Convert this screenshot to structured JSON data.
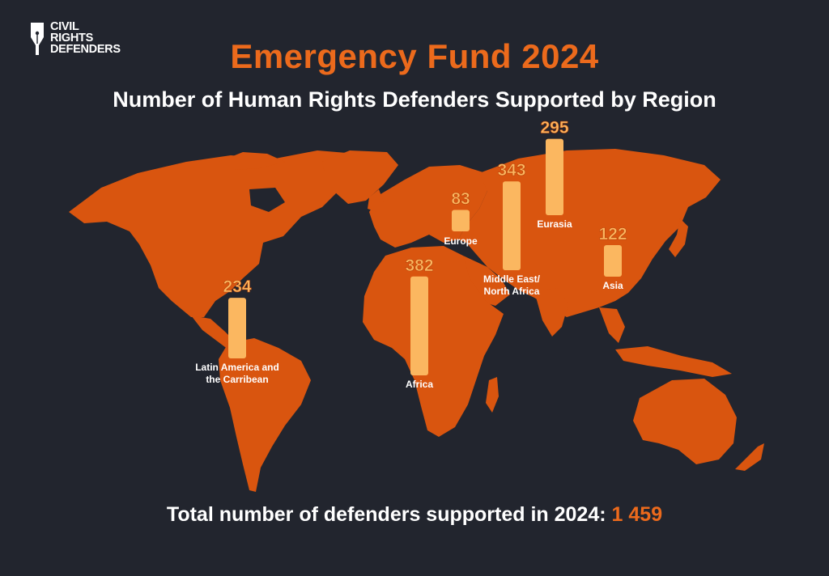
{
  "logo": {
    "lines": [
      "CIVIL",
      "RIGHTS",
      "DEFENDERS"
    ]
  },
  "title": "Emergency Fund 2024",
  "subtitle": "Number of Human Rights Defenders Supported by Region",
  "colors": {
    "background": "#22252e",
    "map": "#d9550f",
    "bar": "#fbb760",
    "accent": "#ec6a1c"
  },
  "chart_data": {
    "type": "bar",
    "categories": [
      "Latin America and the Carribean",
      "Africa",
      "Europe",
      "Middle East/ North Africa",
      "Eurasia",
      "Asia"
    ],
    "values": [
      234,
      382,
      83,
      343,
      295,
      122
    ],
    "title": "Number of Human Rights Defenders Supported by Region",
    "xlabel": "",
    "ylabel": ""
  },
  "total": {
    "label": "Total number of defenders supported in 2024:",
    "value": "1 459"
  }
}
